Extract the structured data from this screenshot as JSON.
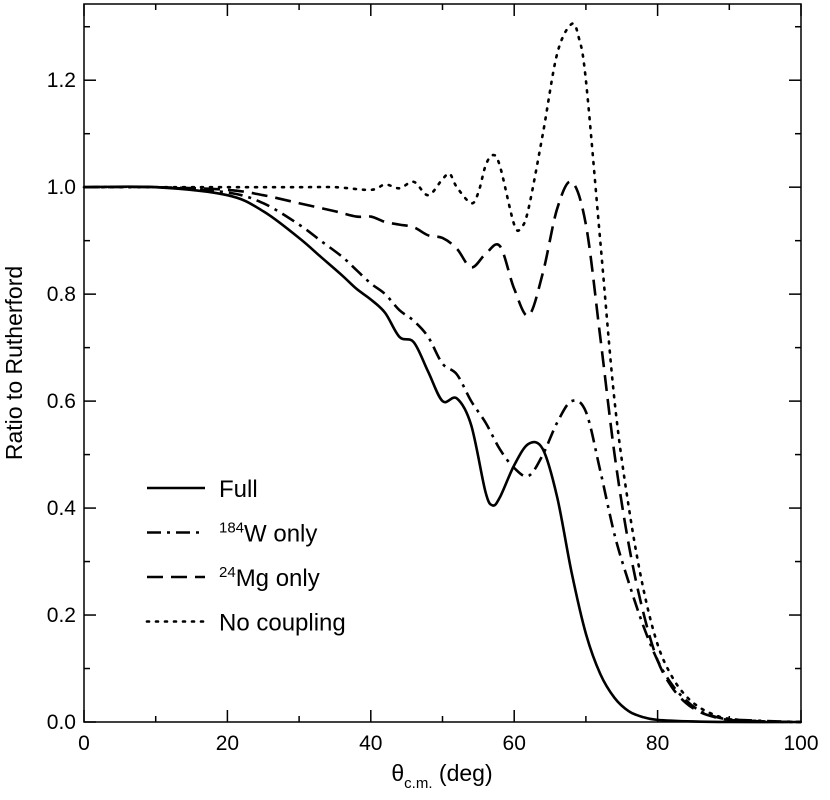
{
  "chart_data": {
    "type": "line",
    "xlabel": "θ",
    "xlabel_sub": "c.m.",
    "xlabel_unit": " (deg)",
    "ylabel": "Ratio to Rutherford",
    "xlim": [
      0,
      100
    ],
    "ylim": [
      0.0,
      1.35
    ],
    "x_ticks": [
      0,
      20,
      40,
      60,
      80,
      100
    ],
    "x_tick_labels": [
      "0",
      "20",
      "40",
      "60",
      "80",
      "100"
    ],
    "y_ticks": [
      0.0,
      0.2,
      0.4,
      0.6,
      0.8,
      1.0,
      1.2
    ],
    "y_tick_labels": [
      "0.0",
      "0.2",
      "0.4",
      "0.6",
      "0.8",
      "1.0",
      "1.2"
    ],
    "grid": false,
    "legend_position": "bottom-left",
    "series": [
      {
        "name": "Full",
        "label_sup": "",
        "label_text": "Full",
        "dash": "solid",
        "x": [
          0,
          10,
          20,
          25,
          30,
          33,
          36,
          38,
          40,
          42,
          44,
          46,
          48,
          50,
          52,
          54,
          56,
          57,
          58,
          60,
          62,
          64,
          66,
          68,
          70,
          72,
          74,
          76,
          78,
          80,
          85,
          90,
          100
        ],
        "y": [
          1.0,
          1.0,
          0.985,
          0.955,
          0.905,
          0.87,
          0.835,
          0.81,
          0.79,
          0.765,
          0.72,
          0.71,
          0.655,
          0.6,
          0.605,
          0.555,
          0.43,
          0.405,
          0.42,
          0.48,
          0.52,
          0.51,
          0.42,
          0.28,
          0.165,
          0.09,
          0.045,
          0.02,
          0.009,
          0.004,
          0.001,
          0.0,
          0.0
        ]
      },
      {
        "name": "184W only",
        "label_sup": "184",
        "label_text": "W only",
        "dash": "dashdot",
        "x": [
          0,
          10,
          20,
          25,
          30,
          33,
          36,
          38,
          40,
          42,
          44,
          46,
          48,
          50,
          52,
          54,
          56,
          58,
          60,
          62,
          64,
          66,
          68,
          70,
          72,
          74,
          76,
          78,
          80,
          82,
          84,
          86,
          88,
          90,
          95,
          100
        ],
        "y": [
          1.0,
          1.0,
          0.99,
          0.97,
          0.93,
          0.9,
          0.87,
          0.845,
          0.82,
          0.8,
          0.77,
          0.75,
          0.72,
          0.67,
          0.65,
          0.6,
          0.56,
          0.51,
          0.475,
          0.46,
          0.5,
          0.56,
          0.6,
          0.58,
          0.47,
          0.35,
          0.26,
          0.18,
          0.115,
          0.07,
          0.04,
          0.02,
          0.01,
          0.005,
          0.002,
          0.0
        ]
      },
      {
        "name": "24Mg only",
        "label_sup": "24",
        "label_text": "Mg only",
        "dash": "dashed",
        "x": [
          0,
          10,
          20,
          25,
          30,
          35,
          38,
          40,
          42,
          44,
          46,
          48,
          50,
          52,
          54,
          56,
          58,
          60,
          62,
          64,
          66,
          68,
          70,
          72,
          74,
          76,
          78,
          80,
          82,
          84,
          86,
          88,
          90,
          95,
          100
        ],
        "y": [
          1.0,
          1.0,
          0.995,
          0.985,
          0.97,
          0.955,
          0.945,
          0.945,
          0.935,
          0.93,
          0.925,
          0.91,
          0.905,
          0.885,
          0.85,
          0.875,
          0.89,
          0.81,
          0.76,
          0.84,
          0.96,
          1.01,
          0.93,
          0.72,
          0.5,
          0.33,
          0.205,
          0.115,
          0.065,
          0.035,
          0.018,
          0.009,
          0.004,
          0.001,
          0.0
        ]
      },
      {
        "name": "No coupling",
        "label_sup": "",
        "label_text": "No coupling",
        "dash": "dotted",
        "x": [
          0,
          10,
          20,
          30,
          35,
          40,
          42,
          44,
          46,
          48,
          50,
          51,
          52,
          54,
          55,
          56,
          57,
          58,
          60,
          61,
          62,
          64,
          66,
          68,
          69,
          70,
          72,
          74,
          76,
          78,
          80,
          82,
          84,
          86,
          88,
          90,
          95,
          100
        ],
        "y": [
          1.0,
          1.0,
          1.0,
          1.0,
          1.0,
          0.995,
          1.005,
          0.998,
          1.01,
          0.985,
          1.015,
          1.025,
          1.0,
          0.97,
          0.99,
          1.04,
          1.06,
          1.04,
          0.93,
          0.925,
          0.96,
          1.1,
          1.25,
          1.305,
          1.28,
          1.2,
          0.9,
          0.6,
          0.4,
          0.25,
          0.145,
          0.085,
          0.048,
          0.026,
          0.013,
          0.006,
          0.001,
          0.0
        ]
      }
    ]
  }
}
